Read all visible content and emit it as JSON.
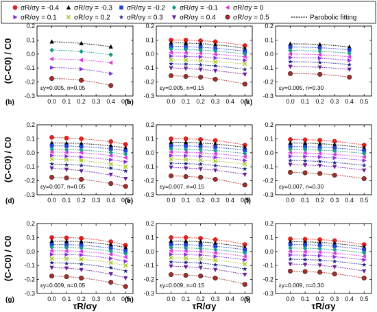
{
  "legend": {
    "entries": [
      {
        "label": "σR/σy = -0.4",
        "marker": "circle",
        "color": "#e8201c"
      },
      {
        "label": "σR/σy = -0.3",
        "marker": "triangle",
        "color": "#000000"
      },
      {
        "label": "σR/σy = -0.2",
        "marker": "square",
        "color": "#1f3fd6"
      },
      {
        "label": "σR/σy = -0.1",
        "marker": "diamond",
        "color": "#1a9a8a"
      },
      {
        "label": "σR/σy = 0",
        "marker": "tri-left",
        "color": "#e036e0"
      },
      {
        "label": "σR/σy = 0.1",
        "marker": "tri-right",
        "color": "#8a2be2"
      },
      {
        "label": "σR/σy = 0.2",
        "marker": "x",
        "color": "#a8c830"
      },
      {
        "label": "σR/σy = 0.3",
        "marker": "star",
        "color": "#1a237e"
      },
      {
        "label": "σR/σy = 0.4",
        "marker": "tri-down",
        "color": "#6a1b9a"
      },
      {
        "label": "σR/σy = 0.5",
        "marker": "hex",
        "color": "#a0302a"
      }
    ],
    "fit_label": "Parobolic fitting"
  },
  "axis_labels": {
    "y": "(C-C0) / C0",
    "x": "τR/σy"
  },
  "chart_data": [
    {
      "panel": "(b)",
      "annotation": "εy=0.005, n=0.05",
      "type": "scatter",
      "xlim": [
        -0.1,
        0.55
      ],
      "ylim": [
        -0.3,
        0.2
      ],
      "xticks": [
        "0.0",
        "0.1",
        "0.2",
        "0.3",
        "0.4",
        "0.5"
      ],
      "yticks": [
        "0.2",
        "0.1",
        "0.0",
        "-0.1",
        "-0.2",
        "-0.3"
      ],
      "x": [
        0,
        0.2,
        0.4
      ],
      "series": [
        {
          "s": 1,
          "values": [
            0.088,
            0.076,
            0.052
          ]
        },
        {
          "s": 3,
          "values": [
            0.028,
            0.018,
            -0.005
          ]
        },
        {
          "s": 4,
          "values": [
            -0.035,
            -0.043,
            -0.062
          ]
        },
        {
          "s": 5,
          "values": [
            -0.097,
            -0.108,
            -0.14
          ]
        },
        {
          "s": 9,
          "values": [
            -0.175,
            -0.188,
            -0.225
          ]
        }
      ]
    },
    {
      "panel": "(b)",
      "annotation": "εy=0.005, n=0.15",
      "type": "scatter",
      "xlim": [
        -0.1,
        0.55
      ],
      "ylim": [
        -0.3,
        0.2
      ],
      "xticks": [
        "0.0",
        "0.1",
        "0.2",
        "0.3",
        "0.4",
        "0.5"
      ],
      "yticks": [
        "0.2",
        "0.1",
        "0.0",
        "-0.1",
        "-0.2",
        "-0.3"
      ],
      "x": [
        0,
        0.1,
        0.2,
        0.3,
        0.5
      ],
      "series": [
        {
          "s": 0,
          "values": [
            0.1,
            0.1,
            0.095,
            0.088,
            0.06
          ]
        },
        {
          "s": 1,
          "values": [
            0.08,
            0.078,
            0.073,
            0.068,
            0.04
          ]
        },
        {
          "s": 2,
          "values": [
            0.055,
            0.052,
            0.05,
            0.04,
            0.02
          ]
        },
        {
          "s": 3,
          "values": [
            0.035,
            0.032,
            0.028,
            0.022,
            0.0
          ]
        },
        {
          "s": 4,
          "values": [
            0.01,
            0.008,
            0.005,
            -0.002,
            -0.02
          ]
        },
        {
          "s": 5,
          "values": [
            -0.015,
            -0.017,
            -0.02,
            -0.028,
            -0.045
          ]
        },
        {
          "s": 6,
          "values": [
            -0.04,
            -0.043,
            -0.047,
            -0.055,
            -0.07
          ]
        },
        {
          "s": 7,
          "values": [
            -0.07,
            -0.072,
            -0.078,
            -0.085,
            -0.11
          ]
        },
        {
          "s": 8,
          "values": [
            -0.1,
            -0.103,
            -0.11,
            -0.12,
            -0.145
          ]
        },
        {
          "s": 9,
          "values": [
            -0.155,
            -0.16,
            -0.165,
            -0.18,
            -0.215
          ]
        }
      ]
    },
    {
      "panel": "(c)",
      "annotation": "εy=0.005, n=0.30",
      "type": "scatter",
      "xlim": [
        -0.1,
        0.55
      ],
      "ylim": [
        -0.3,
        0.2
      ],
      "xticks": [
        "0.0",
        "0.1",
        "0.2",
        "0.3",
        "0.4",
        "0.5"
      ],
      "yticks": [
        "0.2",
        "0.1",
        "0.0",
        "-0.1",
        "-0.2",
        "-0.3"
      ],
      "x": [
        0,
        0.2,
        0.4
      ],
      "series": [
        {
          "s": 1,
          "values": [
            0.072,
            0.068,
            0.05
          ]
        },
        {
          "s": 2,
          "values": [
            0.05,
            0.045,
            0.03
          ]
        },
        {
          "s": 3,
          "values": [
            0.025,
            0.02,
            0.005
          ]
        },
        {
          "s": 4,
          "values": [
            0.0,
            -0.005,
            -0.02
          ]
        },
        {
          "s": 5,
          "values": [
            -0.025,
            -0.03,
            -0.045
          ]
        },
        {
          "s": 7,
          "values": [
            -0.055,
            -0.06,
            -0.075
          ]
        },
        {
          "s": 8,
          "values": [
            -0.09,
            -0.095,
            -0.11
          ]
        },
        {
          "s": 9,
          "values": [
            -0.14,
            -0.145,
            -0.165
          ]
        }
      ]
    },
    {
      "panel": "(d)",
      "annotation": "εy=0.007, n=0.05",
      "type": "scatter",
      "xlim": [
        -0.1,
        0.55
      ],
      "ylim": [
        -0.3,
        0.2
      ],
      "xticks": [
        "0.0",
        "0.1",
        "0.2",
        "0.3",
        "0.4",
        "0.5"
      ],
      "yticks": [
        "0.2",
        "0.1",
        "0.0",
        "-0.1",
        "-0.2",
        "-0.3"
      ],
      "x": [
        0,
        0.1,
        0.2,
        0.4,
        0.5
      ],
      "series": [
        {
          "s": 0,
          "values": [
            0.11,
            0.105,
            0.1,
            0.08,
            0.06
          ]
        },
        {
          "s": 1,
          "values": [
            0.07,
            0.068,
            0.066,
            0.05,
            0.035
          ]
        },
        {
          "s": 2,
          "values": [
            0.05,
            0.048,
            0.045,
            0.028,
            0.015
          ]
        },
        {
          "s": 3,
          "values": [
            0.025,
            0.022,
            0.02,
            0.002,
            -0.01
          ]
        },
        {
          "s": 4,
          "values": [
            0.005,
            0.002,
            0.0,
            -0.02,
            -0.035
          ]
        },
        {
          "s": 5,
          "values": [
            -0.02,
            -0.025,
            -0.03,
            -0.05,
            -0.065
          ]
        },
        {
          "s": 6,
          "values": [
            -0.045,
            -0.05,
            -0.055,
            -0.08,
            -0.1
          ]
        },
        {
          "s": 7,
          "values": [
            -0.08,
            -0.085,
            -0.09,
            -0.11,
            -0.13
          ]
        },
        {
          "s": 8,
          "values": [
            -0.11,
            -0.12,
            -0.13,
            -0.155,
            -0.185
          ]
        },
        {
          "s": 9,
          "values": [
            -0.175,
            -0.18,
            -0.19,
            -0.22,
            -0.24
          ]
        }
      ]
    },
    {
      "panel": "(e)",
      "annotation": "εy=0.007, n=0.15",
      "type": "scatter",
      "xlim": [
        -0.1,
        0.55
      ],
      "ylim": [
        -0.3,
        0.2
      ],
      "xticks": [
        "0.0",
        "0.1",
        "0.2",
        "0.3",
        "0.4",
        "0.5"
      ],
      "yticks": [
        "0.2",
        "0.1",
        "0.0",
        "-0.1",
        "-0.2",
        "-0.3"
      ],
      "x": [
        0,
        0.1,
        0.2,
        0.3,
        0.5
      ],
      "series": [
        {
          "s": 0,
          "values": [
            0.1,
            0.1,
            0.095,
            0.088,
            0.055
          ]
        },
        {
          "s": 1,
          "values": [
            0.075,
            0.073,
            0.07,
            0.063,
            0.038
          ]
        },
        {
          "s": 2,
          "values": [
            0.05,
            0.048,
            0.045,
            0.04,
            0.018
          ]
        },
        {
          "s": 3,
          "values": [
            0.028,
            0.025,
            0.022,
            0.015,
            -0.005
          ]
        },
        {
          "s": 4,
          "values": [
            0.005,
            0.003,
            0.0,
            -0.008,
            -0.028
          ]
        },
        {
          "s": 5,
          "values": [
            -0.02,
            -0.022,
            -0.025,
            -0.033,
            -0.055
          ]
        },
        {
          "s": 6,
          "values": [
            -0.045,
            -0.048,
            -0.052,
            -0.06,
            -0.08
          ]
        },
        {
          "s": 7,
          "values": [
            -0.075,
            -0.078,
            -0.082,
            -0.092,
            -0.115
          ]
        },
        {
          "s": 8,
          "values": [
            -0.105,
            -0.11,
            -0.115,
            -0.125,
            -0.155
          ]
        },
        {
          "s": 9,
          "values": [
            -0.165,
            -0.17,
            -0.175,
            -0.19,
            -0.23
          ]
        }
      ]
    },
    {
      "panel": "(f)",
      "annotation": "εy=0.007, n=0.30",
      "type": "scatter",
      "xlim": [
        -0.1,
        0.55
      ],
      "ylim": [
        -0.3,
        0.2
      ],
      "xticks": [
        "0.0",
        "0.1",
        "0.2",
        "0.3",
        "0.4",
        "0.5"
      ],
      "yticks": [
        "0.2",
        "0.1",
        "0.0",
        "-0.1",
        "-0.2",
        "-0.3"
      ],
      "x": [
        0,
        0.1,
        0.2,
        0.3,
        0.5
      ],
      "series": [
        {
          "s": 0,
          "values": [
            0.095,
            0.093,
            0.09,
            0.082,
            0.055
          ]
        },
        {
          "s": 1,
          "values": [
            0.07,
            0.068,
            0.065,
            0.058,
            0.035
          ]
        },
        {
          "s": 2,
          "values": [
            0.045,
            0.043,
            0.04,
            0.035,
            0.015
          ]
        },
        {
          "s": 3,
          "values": [
            0.025,
            0.022,
            0.02,
            0.013,
            -0.005
          ]
        },
        {
          "s": 4,
          "values": [
            0.0,
            -0.002,
            -0.005,
            -0.012,
            -0.03
          ]
        },
        {
          "s": 5,
          "values": [
            -0.025,
            -0.027,
            -0.03,
            -0.037,
            -0.055
          ]
        },
        {
          "s": 7,
          "values": [
            -0.055,
            -0.058,
            -0.062,
            -0.07,
            -0.09
          ]
        },
        {
          "s": 8,
          "values": [
            -0.085,
            -0.088,
            -0.092,
            -0.1,
            -0.125
          ]
        },
        {
          "s": 9,
          "values": [
            -0.14,
            -0.143,
            -0.148,
            -0.16,
            -0.185
          ]
        }
      ]
    },
    {
      "panel": "(g)",
      "annotation": "εy=0.009, n=0.05",
      "type": "scatter",
      "xlim": [
        -0.1,
        0.55
      ],
      "ylim": [
        -0.3,
        0.2
      ],
      "xticks": [
        "0.0",
        "0.1",
        "0.2",
        "0.3",
        "0.4",
        "0.5"
      ],
      "yticks": [
        "0.2",
        "0.1",
        "0.0",
        "-0.1",
        "-0.2",
        "-0.3"
      ],
      "x": [
        0,
        0.1,
        0.2,
        0.4,
        0.5
      ],
      "series": [
        {
          "s": 0,
          "values": [
            0.1,
            0.098,
            0.095,
            0.07,
            0.045
          ]
        },
        {
          "s": 1,
          "values": [
            0.075,
            0.073,
            0.07,
            0.048,
            0.028
          ]
        },
        {
          "s": 2,
          "values": [
            0.05,
            0.048,
            0.045,
            0.025,
            0.005
          ]
        },
        {
          "s": 3,
          "values": [
            0.03,
            0.028,
            0.025,
            0.003,
            -0.015
          ]
        },
        {
          "s": 4,
          "values": [
            0.005,
            0.003,
            0.0,
            -0.02,
            -0.04
          ]
        },
        {
          "s": 5,
          "values": [
            -0.02,
            -0.022,
            -0.025,
            -0.05,
            -0.07
          ]
        },
        {
          "s": 6,
          "values": [
            -0.05,
            -0.052,
            -0.055,
            -0.08,
            -0.1
          ]
        },
        {
          "s": 7,
          "values": [
            -0.08,
            -0.085,
            -0.09,
            -0.115,
            -0.14
          ]
        },
        {
          "s": 8,
          "values": [
            -0.115,
            -0.12,
            -0.13,
            -0.16,
            -0.19
          ]
        },
        {
          "s": 9,
          "values": [
            -0.175,
            -0.18,
            -0.19,
            -0.22,
            -0.25
          ]
        }
      ]
    },
    {
      "panel": "(h)",
      "annotation": "εy=0.009, n=0.15",
      "type": "scatter",
      "xlim": [
        -0.1,
        0.55
      ],
      "ylim": [
        -0.3,
        0.2
      ],
      "xticks": [
        "0.0",
        "0.1",
        "0.2",
        "0.3",
        "0.4",
        "0.5"
      ],
      "yticks": [
        "0.2",
        "0.1",
        "0.0",
        "-0.1",
        "-0.2",
        "-0.3"
      ],
      "x": [
        0,
        0.1,
        0.2,
        0.3,
        0.5
      ],
      "series": [
        {
          "s": 0,
          "values": [
            0.1,
            0.1,
            0.095,
            0.085,
            0.05
          ]
        },
        {
          "s": 1,
          "values": [
            0.075,
            0.073,
            0.07,
            0.06,
            0.03
          ]
        },
        {
          "s": 2,
          "values": [
            0.05,
            0.048,
            0.045,
            0.037,
            0.012
          ]
        },
        {
          "s": 3,
          "values": [
            0.028,
            0.025,
            0.022,
            0.013,
            -0.01
          ]
        },
        {
          "s": 4,
          "values": [
            0.005,
            0.003,
            0.0,
            -0.01,
            -0.035
          ]
        },
        {
          "s": 5,
          "values": [
            -0.02,
            -0.022,
            -0.025,
            -0.035,
            -0.06
          ]
        },
        {
          "s": 6,
          "values": [
            -0.045,
            -0.048,
            -0.052,
            -0.062,
            -0.09
          ]
        },
        {
          "s": 7,
          "values": [
            -0.075,
            -0.078,
            -0.082,
            -0.095,
            -0.125
          ]
        },
        {
          "s": 8,
          "values": [
            -0.105,
            -0.11,
            -0.115,
            -0.13,
            -0.165
          ]
        },
        {
          "s": 9,
          "values": [
            -0.165,
            -0.17,
            -0.175,
            -0.19,
            -0.235
          ]
        }
      ]
    },
    {
      "panel": "(i)",
      "annotation": "εy=0.009, n=0.30",
      "type": "scatter",
      "xlim": [
        -0.1,
        0.55
      ],
      "ylim": [
        -0.3,
        0.2
      ],
      "xticks": [
        "0.0",
        "0.1",
        "0.2",
        "0.3",
        "0.4",
        "0.5"
      ],
      "yticks": [
        "0.2",
        "0.1",
        "0.0",
        "-0.1",
        "-0.2",
        "-0.3"
      ],
      "x": [
        0,
        0.1,
        0.2,
        0.3,
        0.5
      ],
      "series": [
        {
          "s": 0,
          "values": [
            0.09,
            0.088,
            0.085,
            0.078,
            0.05
          ]
        },
        {
          "s": 1,
          "values": [
            0.07,
            0.068,
            0.065,
            0.058,
            0.032
          ]
        },
        {
          "s": 2,
          "values": [
            0.05,
            0.048,
            0.045,
            0.038,
            0.013
          ]
        },
        {
          "s": 3,
          "values": [
            0.025,
            0.023,
            0.02,
            0.013,
            -0.01
          ]
        },
        {
          "s": 4,
          "values": [
            0.0,
            -0.002,
            -0.005,
            -0.012,
            -0.035
          ]
        },
        {
          "s": 5,
          "values": [
            -0.025,
            -0.027,
            -0.03,
            -0.038,
            -0.06
          ]
        },
        {
          "s": 7,
          "values": [
            -0.055,
            -0.058,
            -0.062,
            -0.07,
            -0.095
          ]
        },
        {
          "s": 8,
          "values": [
            -0.09,
            -0.093,
            -0.098,
            -0.11,
            -0.14
          ]
        },
        {
          "s": 9,
          "values": [
            -0.14,
            -0.143,
            -0.148,
            -0.16,
            -0.19
          ]
        }
      ]
    }
  ]
}
